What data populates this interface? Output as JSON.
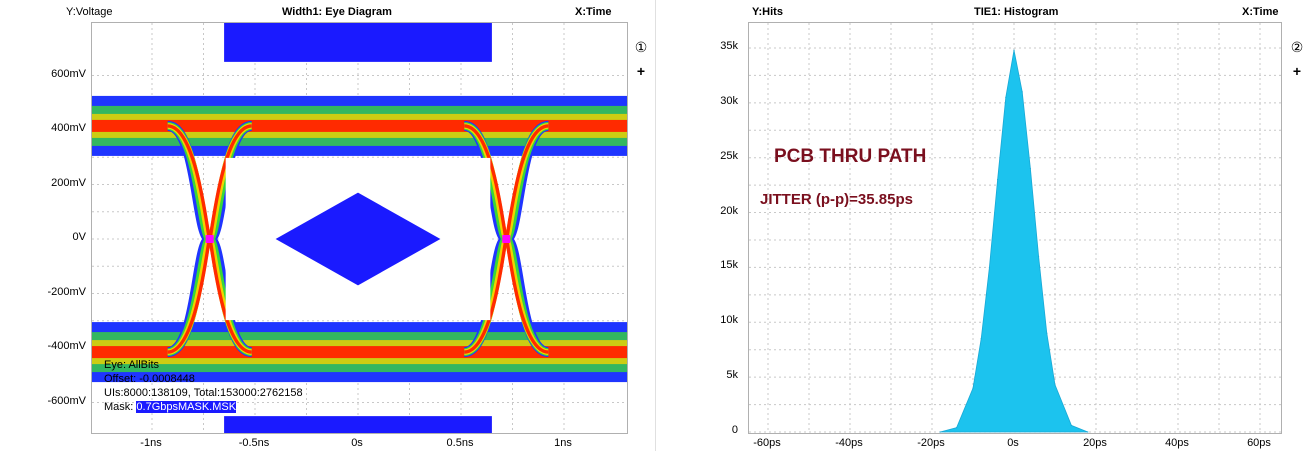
{
  "eye": {
    "y_header": "Y:Voltage",
    "title": "Width1: Eye Diagram",
    "x_header": "X:Time",
    "y_ticks": [
      "600mV",
      "400mV",
      "200mV",
      "0V",
      "-200mV",
      "-400mV",
      "-600mV"
    ],
    "x_ticks": [
      "-1ns",
      "-0.5ns",
      "0s",
      "0.5ns",
      "1ns"
    ],
    "ctrl_number": "①",
    "ctrl_plus": "+",
    "info_lines": [
      "Eye: AllBits",
      "Offset: -0.0008448",
      "UIs:8000:138109, Total:153000:2762158"
    ],
    "mask_prefix": "Mask: ",
    "mask_name": "0.7GbpsMASK.MSK",
    "colors": {
      "mask": "#1a1aff",
      "trace_outer": "#1f35ff",
      "trace_mid": "#38d838",
      "trace_inner": "#f2d200",
      "trace_core": "#ff2a00",
      "cross": "#ff00ff"
    }
  },
  "hist": {
    "y_header": "Y:Hits",
    "title": "TIE1: Histogram",
    "x_header": "X:Time",
    "y_ticks": [
      "35k",
      "30k",
      "25k",
      "20k",
      "15k",
      "10k",
      "5k",
      "0"
    ],
    "x_ticks": [
      "-60ps",
      "-40ps",
      "-20ps",
      "0s",
      "20ps",
      "40ps",
      "60ps"
    ],
    "ctrl_number": "②",
    "ctrl_plus": "+",
    "annotation_title": "PCB THRU PATH",
    "annotation_jitter": "JITTER (p-p)=35.85ps",
    "colors": {
      "fill": "#1cc3ee",
      "annotation": "#7a0f1e"
    }
  },
  "chart_data": {
    "type": "area",
    "x_unit": "ps",
    "y_unit": "hits",
    "xlim": [
      -65,
      65
    ],
    "ylim": [
      0,
      36000
    ],
    "grid": true,
    "x": [
      -18,
      -14,
      -10,
      -8,
      -6,
      -4,
      -2,
      0,
      2,
      4,
      6,
      8,
      10,
      14,
      18
    ],
    "values": [
      0,
      400,
      4000,
      8500,
      15000,
      23000,
      30500,
      34800,
      31000,
      24000,
      16000,
      9000,
      4300,
      600,
      0
    ]
  }
}
